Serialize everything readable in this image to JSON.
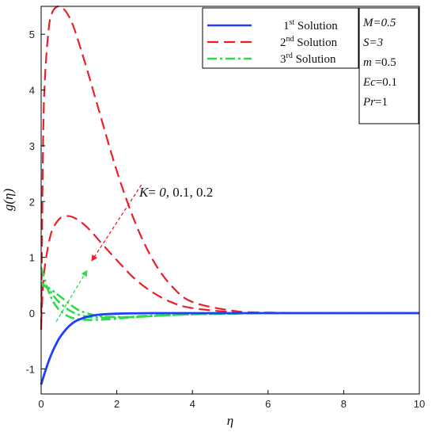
{
  "chart_data": {
    "type": "line",
    "xlabel": "η",
    "ylabel": "g(η)",
    "xlim": [
      0,
      10
    ],
    "ylim": [
      -1.45,
      5.5
    ],
    "x_ticks": [
      "0",
      "2",
      "4",
      "6",
      "8",
      "10"
    ],
    "y_ticks": [
      "-1",
      "0",
      "1",
      "2",
      "3",
      "4",
      "5"
    ],
    "legend": {
      "placement": "top-right",
      "entries": [
        {
          "num": "1",
          "sup": "st",
          "text": " Solution",
          "color": "#1f3fff",
          "dash": "solid"
        },
        {
          "num": "2",
          "sup": "nd",
          "text": " Solution",
          "color": "#e8202a",
          "dash": "dashed"
        },
        {
          "num": "3",
          "sup": "rd",
          "text": " Solution",
          "color": "#2ed94a",
          "dash": "dashdot"
        }
      ]
    },
    "parameters": [
      {
        "name": "M",
        "value": "=0.5"
      },
      {
        "name": "S",
        "value": "=3"
      },
      {
        "name": "m",
        "value": " =0.5"
      },
      {
        "name": "Ec",
        "value": "=0.1"
      },
      {
        "name": "Pr",
        "value": "=1"
      }
    ],
    "annotation": {
      "var": "K",
      "eq": "= ",
      "v1": "0,",
      "rest": " 0.1, 0.2"
    },
    "series": [
      {
        "name": "1st Solution",
        "color": "#1f3fff",
        "dash": "solid",
        "curves": [
          {
            "x": [
              0,
              0.1,
              0.2,
              0.3,
              0.4,
              0.5,
              0.7,
              0.9,
              1.2,
              1.5,
              2.0,
              3.0,
              6.0,
              10.0
            ],
            "y": [
              -1.28,
              -1.06,
              -0.86,
              -0.69,
              -0.55,
              -0.43,
              -0.26,
              -0.15,
              -0.07,
              -0.03,
              -0.01,
              0,
              0,
              0
            ]
          }
        ]
      },
      {
        "name": "2nd Solution",
        "color": "#e8202a",
        "dash": "dashed",
        "curves": [
          {
            "x": [
              0,
              0.05,
              0.1,
              0.2,
              0.3,
              0.45,
              0.6,
              0.75,
              0.9,
              1.2,
              1.5,
              2.0,
              2.5,
              3.0,
              3.5,
              4.0,
              5.0,
              6.0,
              10.0
            ],
            "y": [
              -0.3,
              3.0,
              4.2,
              5.1,
              5.4,
              5.5,
              5.45,
              5.3,
              5.05,
              4.4,
              3.7,
              2.55,
              1.6,
              0.9,
              0.45,
              0.2,
              0.05,
              0.01,
              0
            ]
          },
          {
            "x": [
              0,
              0.05,
              0.1,
              0.2,
              0.3,
              0.5,
              0.7,
              0.9,
              1.2,
              1.6,
              2.0,
              2.5,
              3.0,
              3.5,
              4.0,
              5.0,
              6.0,
              10.0
            ],
            "y": [
              -0.2,
              0.5,
              0.85,
              1.25,
              1.5,
              1.7,
              1.74,
              1.7,
              1.55,
              1.25,
              0.95,
              0.6,
              0.35,
              0.18,
              0.09,
              0.02,
              0,
              0
            ]
          }
        ]
      },
      {
        "name": "3rd Solution",
        "color": "#2ed94a",
        "dash": "dashdot",
        "curves": [
          {
            "x": [
              0,
              0.2,
              0.4,
              0.6,
              0.8,
              1.0,
              1.2,
              1.5,
              2.0,
              2.5,
              3.0,
              4.0,
              5.0,
              6.0,
              10.0
            ],
            "y": [
              0.82,
              0.38,
              0.12,
              -0.01,
              -0.08,
              -0.11,
              -0.12,
              -0.12,
              -0.1,
              -0.07,
              -0.05,
              -0.02,
              -0.01,
              0,
              0
            ]
          },
          {
            "x": [
              0,
              0.2,
              0.5,
              0.8,
              1.0,
              1.3,
              1.6,
              2.0,
              2.5,
              3.0,
              4.0,
              5.0,
              6.0,
              10.0
            ],
            "y": [
              0.5,
              0.45,
              0.3,
              0.14,
              0.05,
              -0.02,
              -0.06,
              -0.07,
              -0.07,
              -0.05,
              -0.02,
              -0.01,
              0,
              0
            ]
          },
          {
            "x": [
              0,
              0.2,
              0.4,
              0.6,
              0.8,
              1.0,
              1.3,
              1.6,
              2.0,
              2.5,
              3.0,
              4.0,
              5.0,
              6.0,
              10.0
            ],
            "y": [
              0.55,
              0.42,
              0.25,
              0.12,
              0.03,
              -0.03,
              -0.07,
              -0.08,
              -0.08,
              -0.06,
              -0.04,
              -0.02,
              -0.01,
              0,
              0
            ]
          }
        ]
      }
    ],
    "arrows": [
      {
        "color": "#e8202a",
        "from": [
          2.65,
          2.3
        ],
        "to": [
          1.35,
          0.95
        ]
      },
      {
        "color": "#2ed94a",
        "from": [
          0.4,
          -0.15
        ],
        "to": [
          1.2,
          0.75
        ]
      }
    ]
  }
}
